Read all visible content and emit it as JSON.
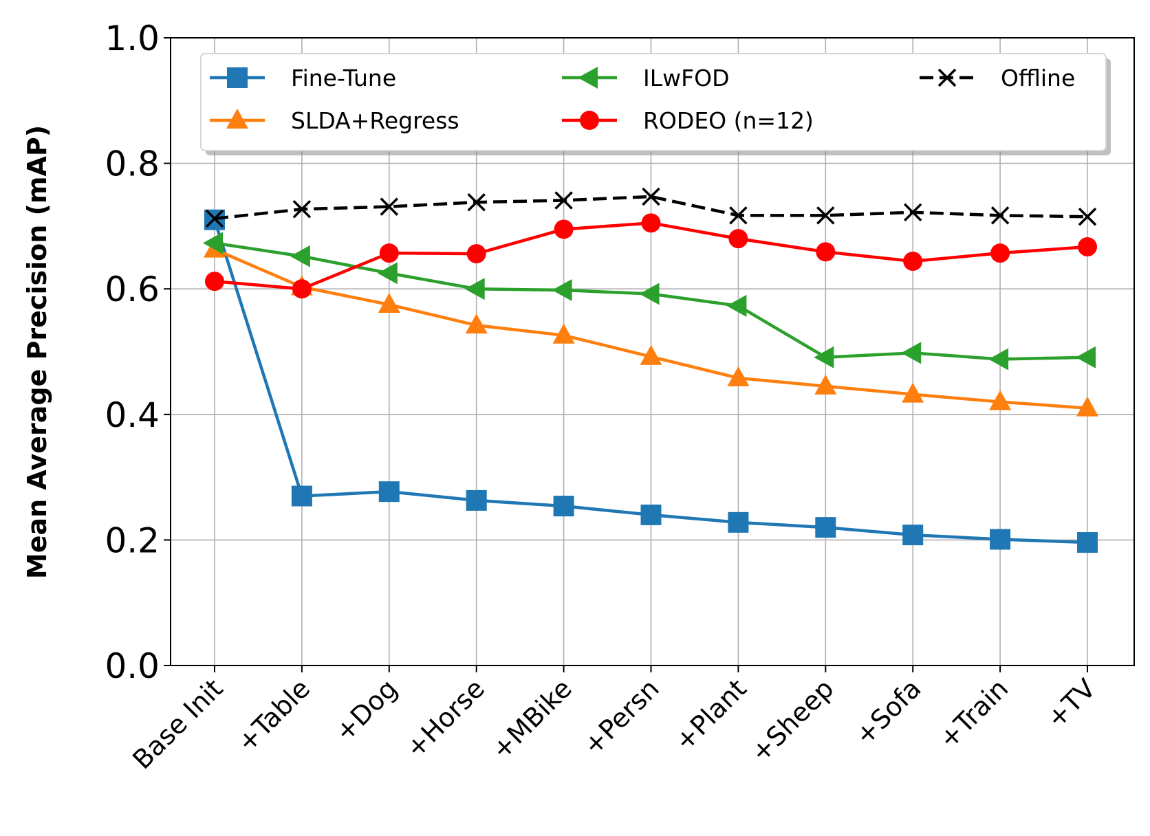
{
  "chart_data": {
    "type": "line",
    "title": "",
    "xlabel": "",
    "ylabel": "Mean Average Precision (mAP)",
    "ylim": [
      0.0,
      1.0
    ],
    "yticks": [
      "0.0",
      "0.2",
      "0.4",
      "0.6",
      "0.8",
      "1.0"
    ],
    "grid": true,
    "legend_position": "top",
    "categories": [
      "Base Init",
      "+Table",
      "+Dog",
      "+Horse",
      "+MBike",
      "+Persn",
      "+Plant",
      "+Sheep",
      "+Sofa",
      "+Train",
      "+TV"
    ],
    "series": [
      {
        "name": "Fine-Tune",
        "color": "#1f77b4",
        "marker": "square",
        "dashed": false,
        "values": [
          0.71,
          0.27,
          0.277,
          0.263,
          0.254,
          0.24,
          0.228,
          0.22,
          0.208,
          0.201,
          0.196
        ]
      },
      {
        "name": "SLDA+Regress",
        "color": "#ff7f0e",
        "marker": "triangle-up",
        "dashed": false,
        "values": [
          0.663,
          0.603,
          0.575,
          0.542,
          0.526,
          0.492,
          0.458,
          0.445,
          0.432,
          0.42,
          0.41
        ]
      },
      {
        "name": "ILwFOD",
        "color": "#2ca02c",
        "marker": "triangle-left",
        "dashed": false,
        "values": [
          0.673,
          0.652,
          0.625,
          0.6,
          0.598,
          0.592,
          0.573,
          0.491,
          0.498,
          0.488,
          0.491
        ]
      },
      {
        "name": "RODEO (n=12)",
        "color": "#ff0000",
        "marker": "circle",
        "dashed": false,
        "values": [
          0.612,
          0.6,
          0.657,
          0.656,
          0.695,
          0.705,
          0.68,
          0.659,
          0.644,
          0.657,
          0.667
        ]
      },
      {
        "name": "Offline",
        "color": "#000000",
        "marker": "x",
        "dashed": true,
        "values": [
          0.712,
          0.727,
          0.731,
          0.738,
          0.741,
          0.747,
          0.717,
          0.717,
          0.722,
          0.717,
          0.715
        ]
      }
    ]
  }
}
